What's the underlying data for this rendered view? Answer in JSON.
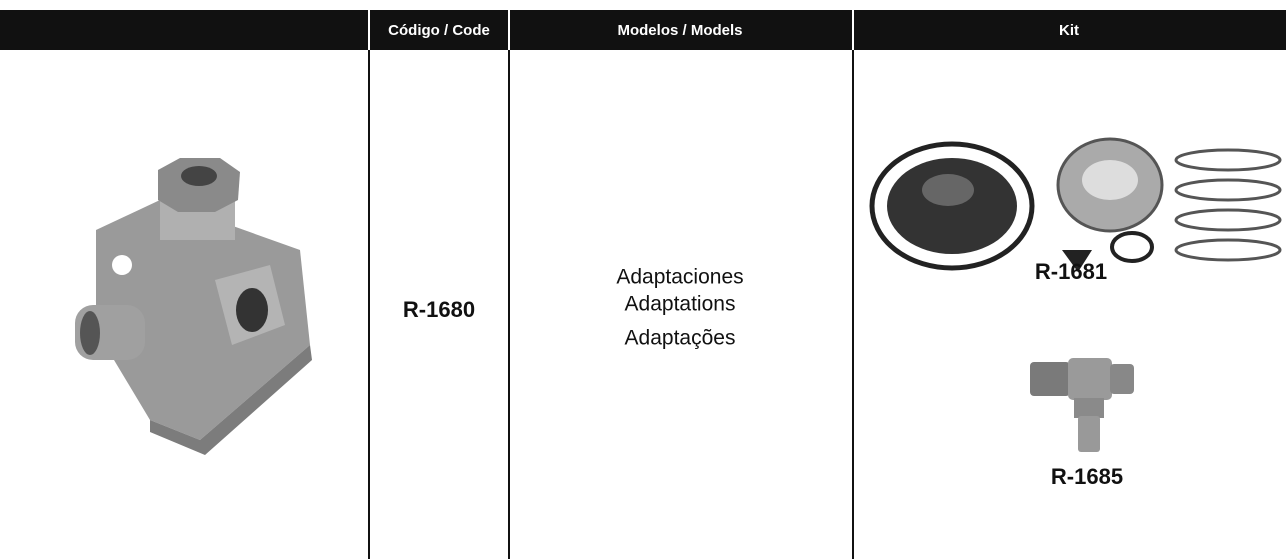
{
  "table": {
    "header": [
      "Código / Code",
      "Modelos / Models",
      "Kit"
    ],
    "rows": [
      {
        "code": "R-1680",
        "models": [
          "Adaptaciones",
          "Adaptations",
          "Adaptações"
        ],
        "kit": [
          "R-1681",
          "R-1685"
        ]
      }
    ]
  }
}
